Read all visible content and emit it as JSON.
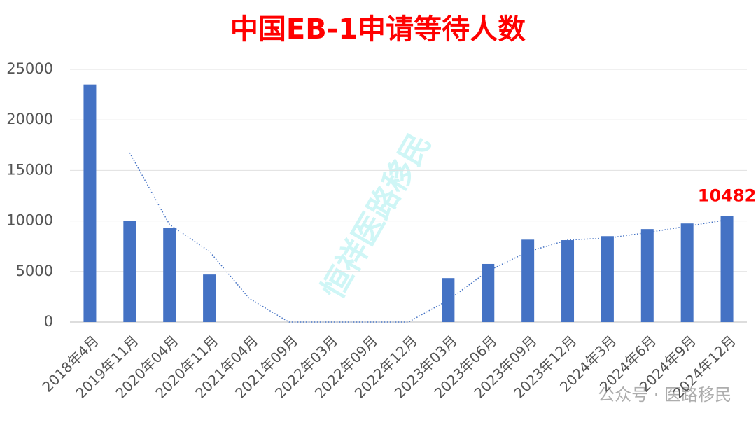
{
  "chart_data": {
    "type": "bar",
    "title": "中国EB-1申请等待人数",
    "categories": [
      "2018年4月",
      "2019年11月",
      "2020年04月",
      "2020年11月",
      "2021年04月",
      "2021年09月",
      "2022年03月",
      "2022年09月",
      "2022年12月",
      "2023年03月",
      "2023年06月",
      "2023年09月",
      "2023年12月",
      "2024年3月",
      "2024年6月",
      "2024年9月",
      "2024年12月"
    ],
    "values": [
      23500,
      10000,
      9300,
      4700,
      0,
      0,
      0,
      0,
      0,
      4350,
      5750,
      8150,
      8100,
      8500,
      9200,
      9750,
      10482
    ],
    "color": "#4472c4",
    "ylim": [
      0,
      25000
    ],
    "yticks": [
      0,
      5000,
      10000,
      15000,
      20000,
      25000
    ],
    "grid": true,
    "trendline_period": 2,
    "trendline_color": "#4472c4",
    "data_labels": "last",
    "data_label_color": "#ff0000",
    "watermark": "恒祥医路移民",
    "footer_watermark": "公众号 · 医路移民"
  }
}
